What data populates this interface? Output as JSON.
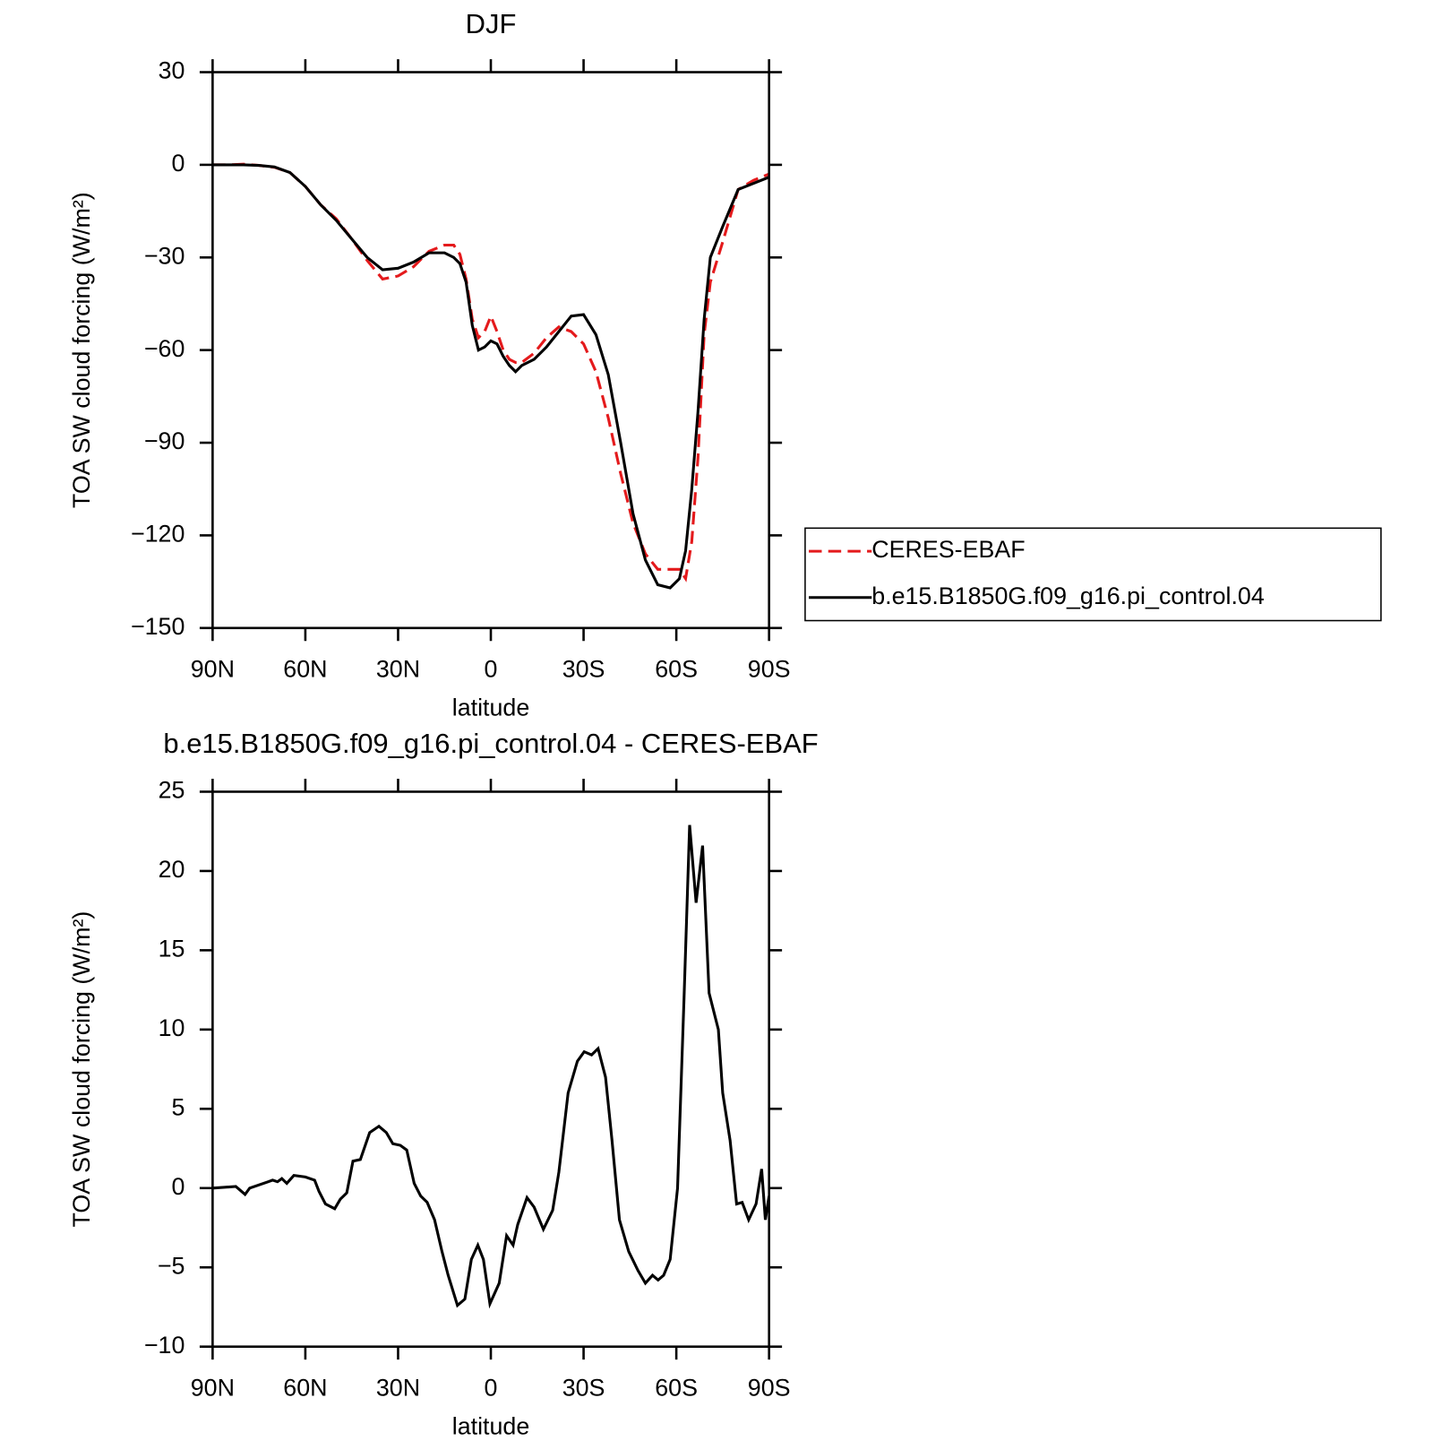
{
  "chart_data": [
    {
      "type": "line",
      "title": "DJF",
      "xlabel": "latitude",
      "ylabel": "TOA SW cloud forcing (W/m²)",
      "x": [
        90,
        85,
        80,
        75,
        70,
        65,
        60,
        55,
        50,
        45,
        40,
        35,
        30,
        25,
        20,
        15,
        12,
        10,
        8,
        6,
        4,
        2,
        0,
        -2,
        -4,
        -6,
        -8,
        -10,
        -14,
        -18,
        -22,
        -26,
        -30,
        -34,
        -38,
        -42,
        -46,
        -50,
        -54,
        -58,
        -61,
        -63,
        -65,
        -67,
        -69,
        -71,
        -75,
        -80,
        -85,
        -90
      ],
      "series": [
        {
          "name": "CERES-EBAF",
          "color": "#e41a1c",
          "dash": true,
          "values": [
            0,
            0,
            0.2,
            -0.2,
            -0.8,
            -2.5,
            -7,
            -13,
            -17.5,
            -24,
            -31,
            -37,
            -36,
            -33,
            -28,
            -26,
            -26,
            -29,
            -37,
            -50,
            -56,
            -54,
            -49,
            -54,
            -60,
            -63,
            -64,
            -64,
            -61,
            -56,
            -52.5,
            -54,
            -58,
            -67,
            -82,
            -100,
            -116,
            -126,
            -131,
            -131,
            -131,
            -134,
            -122,
            -95,
            -55,
            -38,
            -25,
            -8,
            -5,
            -3
          ]
        },
        {
          "name": "b.e15.B1850G.f09_g16.pi_control.04",
          "color": "#000000",
          "dash": false,
          "values": [
            0,
            0,
            0,
            -0.2,
            -0.7,
            -2.5,
            -7,
            -13,
            -18,
            -24,
            -30,
            -34,
            -33.5,
            -31.5,
            -28.5,
            -28.5,
            -30,
            -32,
            -38,
            -52,
            -60,
            -59,
            -57,
            -58,
            -62,
            -65,
            -67,
            -65,
            -63,
            -59,
            -54,
            -49,
            -48.5,
            -55,
            -68,
            -90,
            -113,
            -128,
            -136,
            -137,
            -134,
            -125,
            -105,
            -80,
            -50,
            -30,
            -20,
            -8,
            -6,
            -4
          ]
        }
      ],
      "xlim": [
        90,
        -90
      ],
      "xticks": [
        {
          "value": 90,
          "label": "90N"
        },
        {
          "value": 60,
          "label": "60N"
        },
        {
          "value": 30,
          "label": "30N"
        },
        0,
        {
          "value": -30,
          "label": "30S"
        },
        {
          "value": -60,
          "label": "60S"
        },
        {
          "value": -90,
          "label": "90S"
        }
      ],
      "ylim": [
        -150,
        30
      ],
      "yticks": [
        {
          "value": -150,
          "label": "−150"
        },
        {
          "value": -120,
          "label": "−120"
        },
        {
          "value": -90,
          "label": "−90"
        },
        {
          "value": -60,
          "label": "−60"
        },
        {
          "value": -30,
          "label": "−30"
        },
        0,
        30
      ],
      "legend": "right"
    },
    {
      "type": "line",
      "title": "b.e15.B1850G.f09_g16.pi_control.04 - CERES-EBAF",
      "xlabel": "latitude",
      "ylabel": "TOA SW cloud forcing (W/m²)",
      "x": [
        90,
        82.5,
        79.5,
        78,
        72,
        70.6,
        69,
        67.6,
        66,
        63.7,
        60,
        57,
        55.6,
        53.5,
        50.5,
        48.7,
        46.6,
        44.6,
        42.2,
        39.2,
        36.2,
        33.8,
        31.7,
        29.3,
        27.2,
        24.8,
        22.7,
        20.6,
        18.2,
        15.8,
        13.8,
        10.8,
        8.4,
        6.3,
        4.2,
        2.4,
        0.3,
        -2.7,
        -5.1,
        -7.2,
        -8.7,
        -11.7,
        -14,
        -17,
        -20,
        -22,
        -25,
        -28,
        -30.2,
        -32.6,
        -34.7,
        -37.1,
        -39.2,
        -41.6,
        -44.6,
        -47.6,
        -50,
        -52.3,
        -54.1,
        -55.9,
        -58,
        -60.4,
        -62.5,
        -64.3,
        -66.4,
        -68.5,
        -70.6,
        -73.6,
        -75,
        -77.4,
        -79.5,
        -81.3,
        -83.4,
        -85.8,
        -87.6,
        -88.8,
        -90
      ],
      "values": [
        0,
        0.1,
        -0.4,
        0,
        0.4,
        0.5,
        0.4,
        0.6,
        0.3,
        0.8,
        0.7,
        0.5,
        -0.2,
        -1,
        -1.3,
        -0.7,
        -0.3,
        1.7,
        1.8,
        3.5,
        3.9,
        3.5,
        2.8,
        2.7,
        2.4,
        0.3,
        -0.5,
        -0.9,
        -2,
        -4,
        -5.5,
        -7.4,
        -7,
        -4.5,
        -3.6,
        -4.5,
        -7.3,
        -6,
        -3,
        -3.6,
        -2.3,
        -0.6,
        -1.2,
        -2.6,
        -1.4,
        1,
        6,
        8,
        8.6,
        8.4,
        8.8,
        7,
        3,
        -2,
        -4,
        -5.2,
        -6,
        -5.5,
        -5.8,
        -5.5,
        -4.5,
        0,
        12,
        22.9,
        18,
        21.6,
        12.3,
        10,
        6,
        3,
        -1,
        -0.9,
        -2,
        -1,
        1.2,
        -2,
        -0.5
      ],
      "color": "#000000",
      "xlim": [
        90,
        -90
      ],
      "xticks": [
        {
          "value": 90,
          "label": "90N"
        },
        {
          "value": 60,
          "label": "60N"
        },
        {
          "value": 30,
          "label": "30N"
        },
        0,
        {
          "value": -30,
          "label": "30S"
        },
        {
          "value": -60,
          "label": "60S"
        },
        {
          "value": -90,
          "label": "90S"
        }
      ],
      "ylim": [
        -10,
        25
      ],
      "yticks": [
        {
          "value": -10,
          "label": "−10"
        },
        {
          "value": -5,
          "label": "−5"
        },
        0,
        5,
        10,
        15,
        20,
        25
      ]
    }
  ]
}
